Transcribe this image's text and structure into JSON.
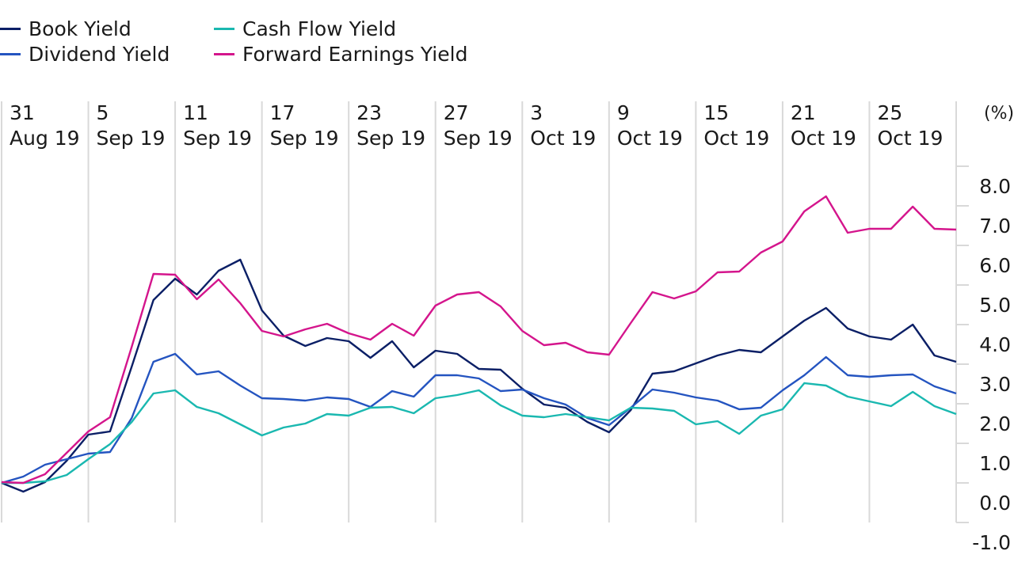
{
  "chart_data": {
    "type": "line",
    "title": "",
    "xlabel": "",
    "ylabel": "(%)",
    "ylim": [
      -1.0,
      8.0
    ],
    "y_ticks": [
      "8.0",
      "7.0",
      "6.0",
      "5.0",
      "4.0",
      "3.0",
      "2.0",
      "1.0",
      "0.0",
      "-1.0"
    ],
    "y_tick_values": [
      8,
      7,
      6,
      5,
      4,
      3,
      2,
      1,
      0,
      -1
    ],
    "y_axis_side": "right",
    "grid": "vertical",
    "legend_position": "top-left",
    "x_point_count": 45,
    "x_ticks": [
      {
        "day": "31",
        "month": "Aug 19",
        "index": 0
      },
      {
        "day": "5",
        "month": "Sep 19",
        "index": 4
      },
      {
        "day": "11",
        "month": "Sep 19",
        "index": 8
      },
      {
        "day": "17",
        "month": "Sep 19",
        "index": 12
      },
      {
        "day": "23",
        "month": "Sep 19",
        "index": 16
      },
      {
        "day": "27",
        "month": "Sep 19",
        "index": 20
      },
      {
        "day": "3",
        "month": "Oct 19",
        "index": 24
      },
      {
        "day": "9",
        "month": "Oct 19",
        "index": 28
      },
      {
        "day": "15",
        "month": "Oct 19",
        "index": 32
      },
      {
        "day": "21",
        "month": "Oct 19",
        "index": 36
      },
      {
        "day": "25",
        "month": "Oct 19",
        "index": 40
      }
    ],
    "series": [
      {
        "name": "Book Yield",
        "color": "#0b1f66",
        "values": [
          0,
          -0.22,
          0.02,
          0.56,
          1.22,
          1.3,
          2.94,
          4.62,
          5.16,
          4.76,
          5.36,
          5.64,
          4.36,
          3.72,
          3.46,
          3.66,
          3.58,
          3.16,
          3.58,
          2.92,
          3.34,
          3.26,
          2.88,
          2.86,
          2.38,
          1.98,
          1.9,
          1.54,
          1.28,
          1.84,
          2.76,
          2.82,
          3.02,
          3.22,
          3.36,
          3.3,
          3.7,
          4.1,
          4.42,
          3.9,
          3.7,
          3.62,
          4.0,
          3.22,
          3.06
        ]
      },
      {
        "name": "Dividend Yield",
        "color": "#2454c0",
        "values": [
          0,
          0.16,
          0.46,
          0.6,
          0.74,
          0.78,
          1.64,
          3.06,
          3.26,
          2.74,
          2.82,
          2.46,
          2.14,
          2.12,
          2.08,
          2.16,
          2.12,
          1.92,
          2.32,
          2.18,
          2.72,
          2.72,
          2.64,
          2.32,
          2.36,
          2.14,
          1.98,
          1.64,
          1.46,
          1.9,
          2.36,
          2.28,
          2.16,
          2.08,
          1.86,
          1.9,
          2.34,
          2.72,
          3.18,
          2.72,
          2.68,
          2.72,
          2.74,
          2.44,
          2.26
        ]
      },
      {
        "name": "Cash Flow Yield",
        "color": "#1ab8b0",
        "values": [
          0,
          0,
          0.04,
          0.2,
          0.6,
          0.98,
          1.54,
          2.26,
          2.34,
          1.92,
          1.76,
          1.48,
          1.2,
          1.4,
          1.5,
          1.74,
          1.7,
          1.9,
          1.92,
          1.76,
          2.14,
          2.22,
          2.34,
          1.96,
          1.7,
          1.66,
          1.74,
          1.66,
          1.58,
          1.9,
          1.88,
          1.82,
          1.48,
          1.56,
          1.24,
          1.7,
          1.86,
          2.52,
          2.46,
          2.18,
          2.06,
          1.94,
          2.3,
          1.94,
          1.74
        ]
      },
      {
        "name": "Forward Earnings Yield",
        "color": "#d4158c",
        "values": [
          0.02,
          0,
          0.22,
          0.76,
          1.3,
          1.66,
          3.44,
          5.28,
          5.26,
          4.64,
          5.14,
          4.54,
          3.84,
          3.7,
          3.88,
          4.02,
          3.78,
          3.62,
          4.02,
          3.72,
          4.48,
          4.76,
          4.82,
          4.46,
          3.84,
          3.48,
          3.54,
          3.3,
          3.24,
          4.04,
          4.82,
          4.66,
          4.84,
          5.32,
          5.34,
          5.82,
          6.1,
          6.86,
          7.24,
          6.32,
          6.42,
          6.42,
          6.98,
          6.42,
          6.4
        ]
      }
    ]
  },
  "legend": [
    {
      "label": "Book Yield",
      "color": "#0b1f66"
    },
    {
      "label": "Dividend Yield",
      "color": "#2454c0"
    },
    {
      "label": "Cash Flow Yield",
      "color": "#1ab8b0"
    },
    {
      "label": "Forward Earnings Yield",
      "color": "#d4158c"
    }
  ],
  "colors": {
    "grid": "#d9d9d9",
    "text": "#1a1a1a"
  }
}
